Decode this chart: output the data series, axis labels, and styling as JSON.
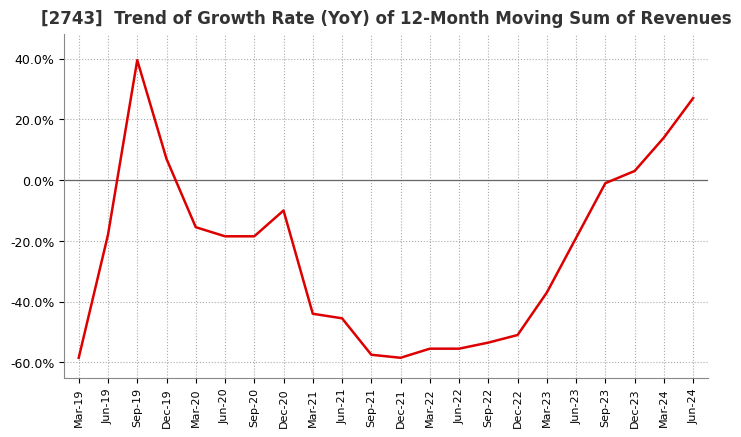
{
  "title": "[2743]  Trend of Growth Rate (YoY) of 12-Month Moving Sum of Revenues",
  "title_fontsize": 12,
  "line_color": "#dd0000",
  "background_color": "#ffffff",
  "grid_color": "#aaaaaa",
  "zero_line_color": "#666666",
  "ylim": [
    -0.65,
    0.48
  ],
  "yticks": [
    -0.6,
    -0.4,
    -0.2,
    0.0,
    0.2,
    0.4
  ],
  "ytick_labels": [
    "-60.0%",
    "-40.0%",
    "-20.0%",
    "0.0%",
    "20.0%",
    "40.0%"
  ],
  "x_labels": [
    "Mar-19",
    "Jun-19",
    "Sep-19",
    "Dec-19",
    "Mar-20",
    "Jun-20",
    "Sep-20",
    "Dec-20",
    "Mar-21",
    "Jun-21",
    "Sep-21",
    "Dec-21",
    "Mar-22",
    "Jun-22",
    "Sep-22",
    "Dec-22",
    "Mar-23",
    "Jun-23",
    "Sep-23",
    "Dec-23",
    "Mar-24",
    "Jun-24"
  ],
  "values": [
    -0.585,
    -0.18,
    0.395,
    0.07,
    -0.155,
    -0.185,
    -0.185,
    -0.1,
    -0.44,
    -0.455,
    -0.575,
    -0.585,
    -0.555,
    -0.555,
    -0.535,
    -0.51,
    -0.37,
    -0.19,
    -0.01,
    0.03,
    0.14,
    0.27
  ]
}
